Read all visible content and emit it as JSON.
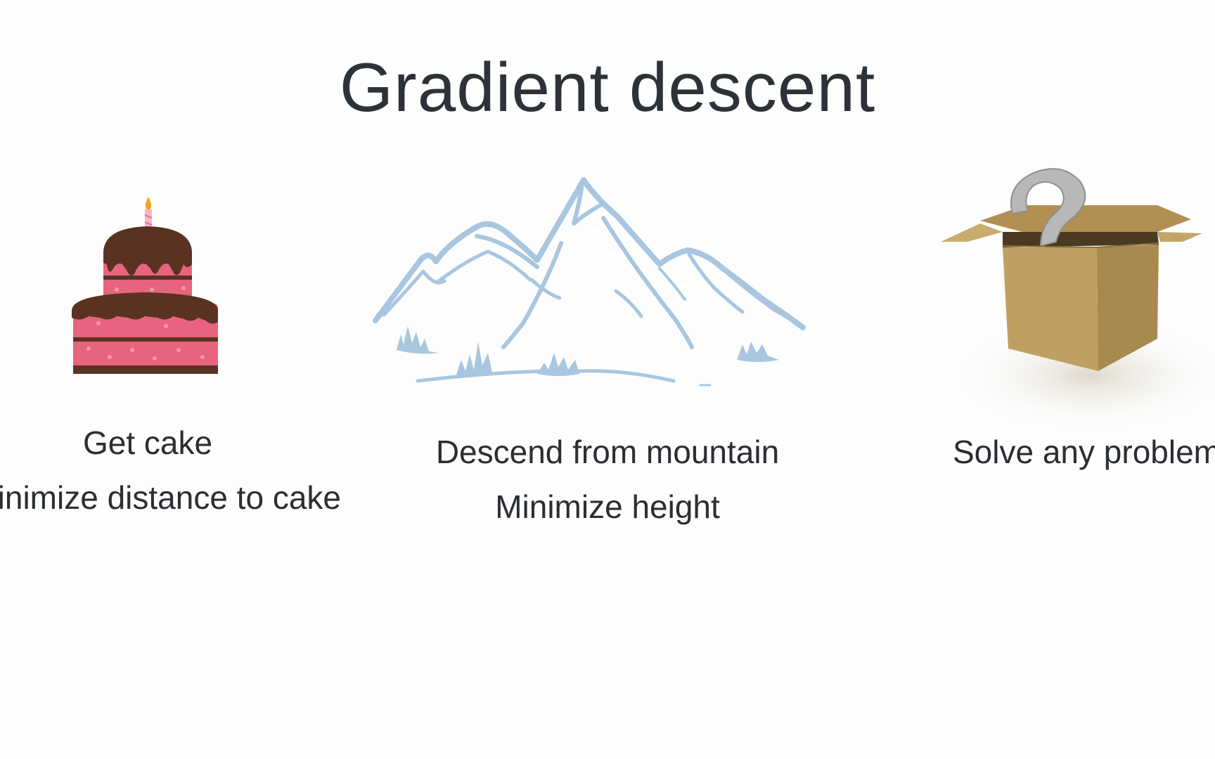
{
  "slide": {
    "title": "Gradient descent",
    "panels": [
      {
        "icon": "birthday-cake",
        "caption_line1": "Get cake",
        "caption_line2": "Minimize distance to cake"
      },
      {
        "icon": "mountain",
        "caption_line1": "Descend from mountain",
        "caption_line2": "Minimize height"
      },
      {
        "icon": "question-box",
        "caption_line1": "Solve any problem",
        "caption_line2": ""
      }
    ]
  },
  "colors": {
    "background": "#fdfdfd",
    "text": "#2b2f33",
    "cake_pink": "#e8637e",
    "cake_chocolate": "#5a3222",
    "mountain_blue": "#a8c6e0",
    "box_tan": "#c0a062",
    "question_mark_gray": "#b8b8b8"
  }
}
